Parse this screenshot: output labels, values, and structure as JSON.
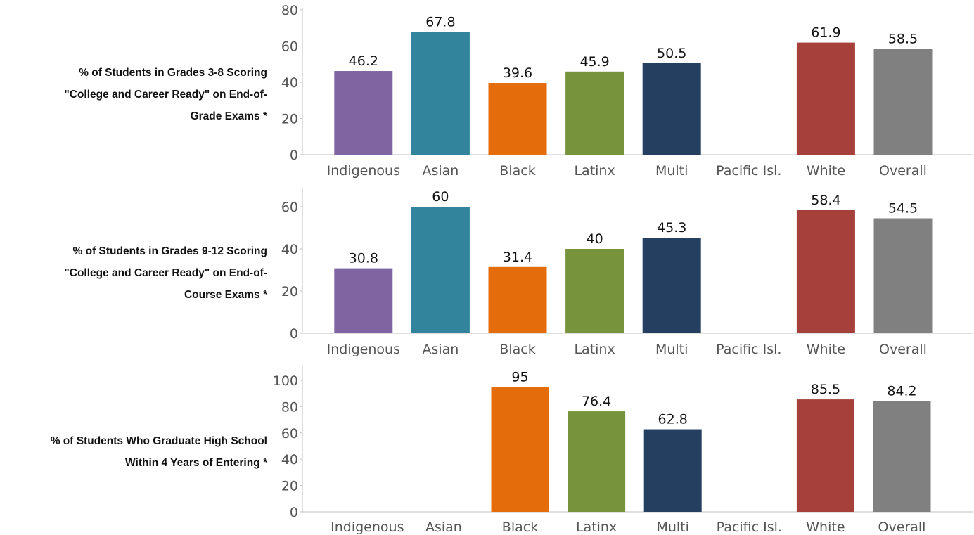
{
  "chart_data": [
    {
      "type": "bar",
      "row_label_lines": [
        "% of Students in Grades 3-8 Scoring",
        "\"College and Career Ready\" on End-of-",
        "Grade Exams *"
      ],
      "categories": [
        "Indigenous",
        "Asian",
        "Black",
        "Latinx",
        "Multi",
        "Pacific Isl.",
        "White",
        "Overall"
      ],
      "values": [
        46.2,
        67.8,
        39.6,
        45.9,
        50.5,
        null,
        61.9,
        58.5
      ],
      "value_labels": [
        "46.2",
        "67.8",
        "39.6",
        "45.9",
        "50.5",
        "",
        "61.9",
        "58.5"
      ],
      "yticks": [
        0,
        20,
        40,
        60,
        80
      ],
      "ylim": [
        0,
        80
      ],
      "grid": false
    },
    {
      "type": "bar",
      "row_label_lines": [
        "% of Students in Grades 9-12 Scoring",
        "\"College and Career Ready\" on End-of-",
        "Course Exams *"
      ],
      "categories": [
        "Indigenous",
        "Asian",
        "Black",
        "Latinx",
        "Multi",
        "Pacific Isl.",
        "White",
        "Overall"
      ],
      "values": [
        30.8,
        60,
        31.4,
        40,
        45.3,
        null,
        58.4,
        54.5
      ],
      "value_labels": [
        "30.8",
        "60",
        "31.4",
        "40",
        "45.3",
        "",
        "58.4",
        "54.5"
      ],
      "yticks": [
        0,
        20,
        40,
        60
      ],
      "ylim": [
        0,
        68
      ],
      "grid": false
    },
    {
      "type": "bar",
      "row_label_lines": [
        "% of Students Who Graduate High School",
        "Within 4 Years of Entering *"
      ],
      "categories": [
        "Indigenous",
        "Asian",
        "Black",
        "Latinx",
        "Multi",
        "Pacific Isl.",
        "White",
        "Overall"
      ],
      "values": [
        null,
        null,
        95,
        76.4,
        62.8,
        null,
        85.5,
        84.2
      ],
      "value_labels": [
        "",
        "",
        "95",
        "76.4",
        "62.8",
        "",
        "85.5",
        "84.2"
      ],
      "yticks": [
        0,
        20,
        40,
        60,
        80,
        100
      ],
      "ylim": [
        0,
        108
      ],
      "grid": false
    }
  ],
  "colors": {
    "Indigenous": "#8064a2",
    "Asian": "#31849b",
    "Black": "#e46c0a",
    "Latinx": "#77933c",
    "Multi": "#243f60",
    "Pacific Isl.": "#aaaaaa",
    "White": "#a5403a",
    "Overall": "#808080"
  }
}
